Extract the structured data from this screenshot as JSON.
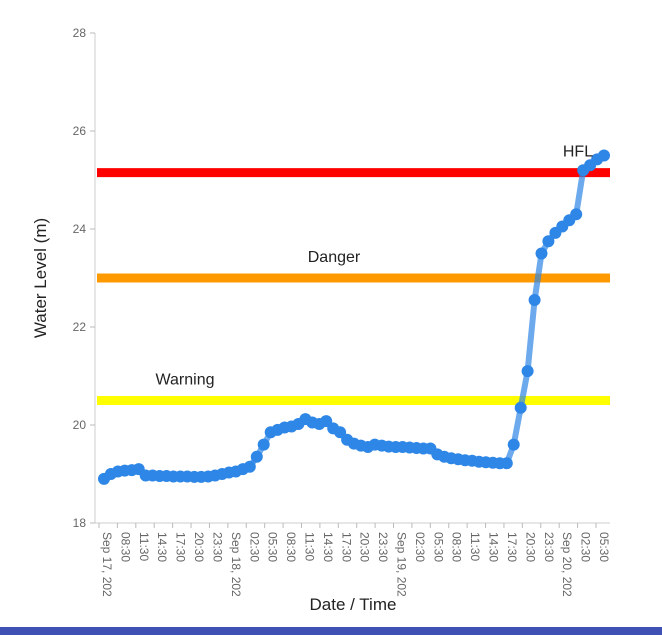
{
  "chart_data": {
    "type": "line",
    "title": "",
    "xlabel": "Date / Time",
    "ylabel": "Water Level (m)",
    "ylim": [
      18,
      28
    ],
    "yticks": [
      18,
      20,
      22,
      24,
      26,
      28
    ],
    "grid": false,
    "line_color": "#2e86e6",
    "reference_lines": [
      {
        "label": "HFL",
        "value": 25.15,
        "color": "#ff0000"
      },
      {
        "label": "Danger",
        "value": 23.0,
        "color": "#ff9900"
      },
      {
        "label": "Warning",
        "value": 20.5,
        "color": "#ffff00"
      }
    ],
    "x_tick_labels": [
      "Sep 17, 202",
      "08:30",
      "11:30",
      "14:30",
      "17:30",
      "20:30",
      "23:30",
      "Sep 18, 202",
      "02:30",
      "05:30",
      "08:30",
      "11:30",
      "14:30",
      "17:30",
      "20:30",
      "23:30",
      "Sep 19, 202",
      "02:30",
      "05:30",
      "08:30",
      "11:30",
      "14:30",
      "17:30",
      "20:30",
      "23:30",
      "Sep 20, 202",
      "02:30",
      "05:30"
    ],
    "series": [
      {
        "values": [
          18.9,
          19.0,
          19.05,
          19.07,
          19.08,
          19.1,
          18.97,
          18.97,
          18.96,
          18.96,
          18.95,
          18.95,
          18.95,
          18.94,
          18.94,
          18.95,
          18.97,
          19.0,
          19.03,
          19.05,
          19.1,
          19.15,
          19.35,
          19.6,
          19.85,
          19.9,
          19.95,
          19.97,
          20.02,
          20.12,
          20.05,
          20.02,
          20.08,
          19.93,
          19.85,
          19.7,
          19.62,
          19.58,
          19.55,
          19.6,
          19.58,
          19.56,
          19.55,
          19.55,
          19.54,
          19.53,
          19.52,
          19.52,
          19.4,
          19.35,
          19.32,
          19.3,
          19.28,
          19.27,
          19.25,
          19.24,
          19.23,
          19.22,
          19.22,
          19.6,
          20.35,
          21.1,
          22.55,
          23.5,
          23.75,
          23.92,
          24.05,
          24.18,
          24.3,
          25.2,
          25.3,
          25.42,
          25.5
        ]
      }
    ]
  }
}
